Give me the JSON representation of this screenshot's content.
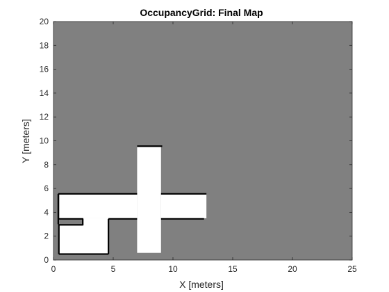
{
  "chart_data": {
    "type": "heatmap",
    "title": "OccupancyGrid: Final Map",
    "xlabel": "X [meters]",
    "ylabel": "Y [meters]",
    "xlim": [
      0,
      25
    ],
    "ylim": [
      0,
      20
    ],
    "xticks": [
      0,
      5,
      10,
      15,
      20,
      25
    ],
    "yticks": [
      0,
      2,
      4,
      6,
      8,
      10,
      12,
      14,
      16,
      18,
      20
    ],
    "grid": false,
    "colors": {
      "unknown": "#808080",
      "free": "#ffffff",
      "occupied": "#000000",
      "axis": "#262626"
    },
    "free_regions": [
      {
        "name": "lower-left-room",
        "x": [
          0.5,
          4.6
        ],
        "y": [
          0.5,
          3.0
        ]
      },
      {
        "name": "corridor",
        "x": [
          0.5,
          7.0
        ],
        "y": [
          3.5,
          5.5
        ]
      },
      {
        "name": "lower-left-link",
        "x": [
          2.5,
          4.6
        ],
        "y": [
          0.5,
          3.5
        ]
      },
      {
        "name": "central-vertical",
        "x": [
          7.0,
          9.0
        ],
        "y": [
          0.6,
          9.5
        ]
      },
      {
        "name": "right-corridor",
        "x": [
          9.0,
          12.8
        ],
        "y": [
          3.5,
          5.5
        ]
      }
    ],
    "occupied_segments": [
      {
        "x": [
          0.4,
          7.0
        ],
        "y": [
          5.55,
          5.55
        ]
      },
      {
        "x": [
          0.4,
          0.4
        ],
        "y": [
          3.0,
          5.55
        ]
      },
      {
        "x": [
          0.4,
          2.5
        ],
        "y": [
          3.45,
          3.45
        ]
      },
      {
        "x": [
          2.45,
          2.45
        ],
        "y": [
          2.9,
          3.45
        ]
      },
      {
        "x": [
          0.4,
          2.45
        ],
        "y": [
          2.95,
          2.95
        ]
      },
      {
        "x": [
          0.45,
          0.45
        ],
        "y": [
          0.5,
          2.95
        ]
      },
      {
        "x": [
          4.6,
          7.0
        ],
        "y": [
          3.45,
          3.45
        ]
      },
      {
        "x": [
          4.6,
          4.6
        ],
        "y": [
          0.5,
          3.45
        ]
      },
      {
        "x": [
          0.45,
          4.6
        ],
        "y": [
          0.5,
          0.5
        ]
      },
      {
        "x": [
          7.0,
          9.1
        ],
        "y": [
          9.55,
          9.55
        ]
      },
      {
        "x": [
          9.0,
          12.8
        ],
        "y": [
          5.55,
          5.55
        ]
      },
      {
        "x": [
          9.0,
          12.6
        ],
        "y": [
          3.45,
          3.45
        ]
      }
    ]
  }
}
